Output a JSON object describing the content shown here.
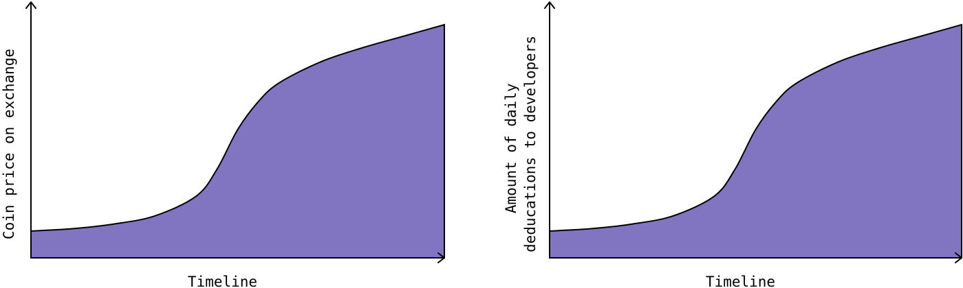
{
  "chart_data": [
    {
      "type": "area",
      "xlabel": "Timeline",
      "ylabel_lines": [
        "Coin price on exchange"
      ],
      "x": [
        0,
        0.1,
        0.2,
        0.3,
        0.4,
        0.45,
        0.5,
        0.55,
        0.6,
        0.7,
        0.8,
        0.9,
        1.0
      ],
      "values": [
        0.115,
        0.125,
        0.145,
        0.18,
        0.265,
        0.38,
        0.55,
        0.67,
        0.75,
        0.84,
        0.9,
        0.95,
        1.0
      ],
      "xlim": [
        0,
        1
      ],
      "ylim": [
        0,
        1
      ],
      "grid": false,
      "fill_color": "#8175c1",
      "tick_labels": false
    },
    {
      "type": "area",
      "xlabel": "Timeline",
      "ylabel_lines": [
        "Amount of daily",
        "deducations to developers"
      ],
      "x": [
        0,
        0.1,
        0.2,
        0.3,
        0.4,
        0.45,
        0.5,
        0.55,
        0.6,
        0.7,
        0.8,
        0.9,
        1.0
      ],
      "values": [
        0.115,
        0.125,
        0.145,
        0.18,
        0.265,
        0.38,
        0.55,
        0.67,
        0.75,
        0.84,
        0.9,
        0.95,
        1.0
      ],
      "xlim": [
        0,
        1
      ],
      "ylim": [
        0,
        1
      ],
      "grid": false,
      "fill_color": "#8175c1",
      "tick_labels": false
    }
  ]
}
